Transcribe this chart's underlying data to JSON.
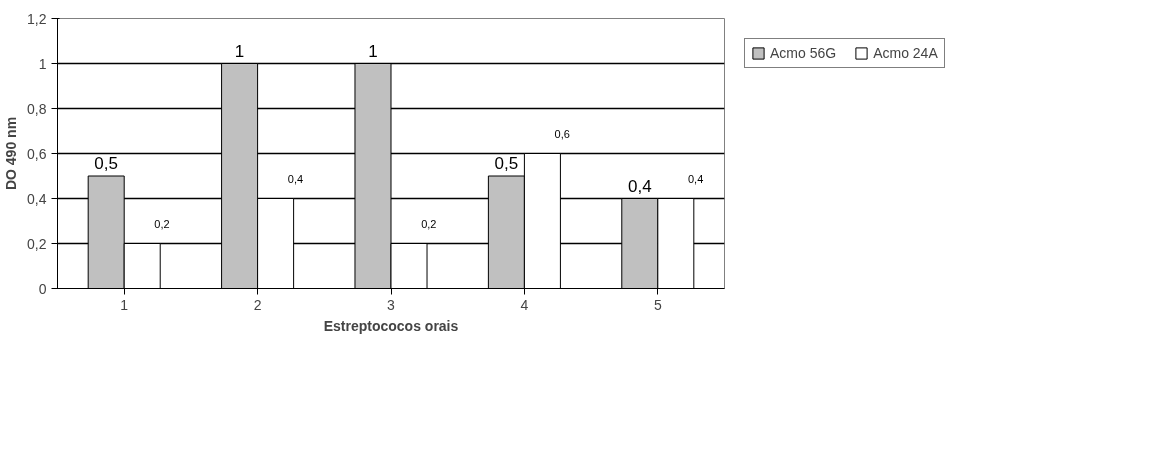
{
  "chart_data": {
    "type": "bar",
    "xlabel": "Estreptococos orais",
    "ylabel": "DO 490 nm",
    "categories": [
      "1",
      "2",
      "3",
      "4",
      "5"
    ],
    "series": [
      {
        "name": "Acmo 56G",
        "color": "#c0c0c0",
        "values": [
          0.5,
          1,
          1,
          0.5,
          0.4
        ],
        "value_labels": [
          "0,5",
          "1",
          "1",
          "0,5",
          "0,4"
        ]
      },
      {
        "name": "Acmo 24A",
        "color": "#ffffff",
        "values": [
          0.2,
          0.4,
          0.2,
          0.6,
          0.4
        ],
        "value_labels": [
          "0,2",
          "0,4",
          "0,2",
          "0,6",
          "0,4"
        ]
      }
    ],
    "ylim": [
      0,
      1.2
    ],
    "yticks": [
      {
        "value": 0,
        "label": "0"
      },
      {
        "value": 0.2,
        "label": "0,2"
      },
      {
        "value": 0.4,
        "label": "0,4"
      },
      {
        "value": 0.6,
        "label": "0,6"
      },
      {
        "value": 0.8,
        "label": "0,8"
      },
      {
        "value": 1,
        "label": "1"
      },
      {
        "value": 1.2,
        "label": "1,2"
      }
    ],
    "grid": "y",
    "legend": "top right"
  }
}
